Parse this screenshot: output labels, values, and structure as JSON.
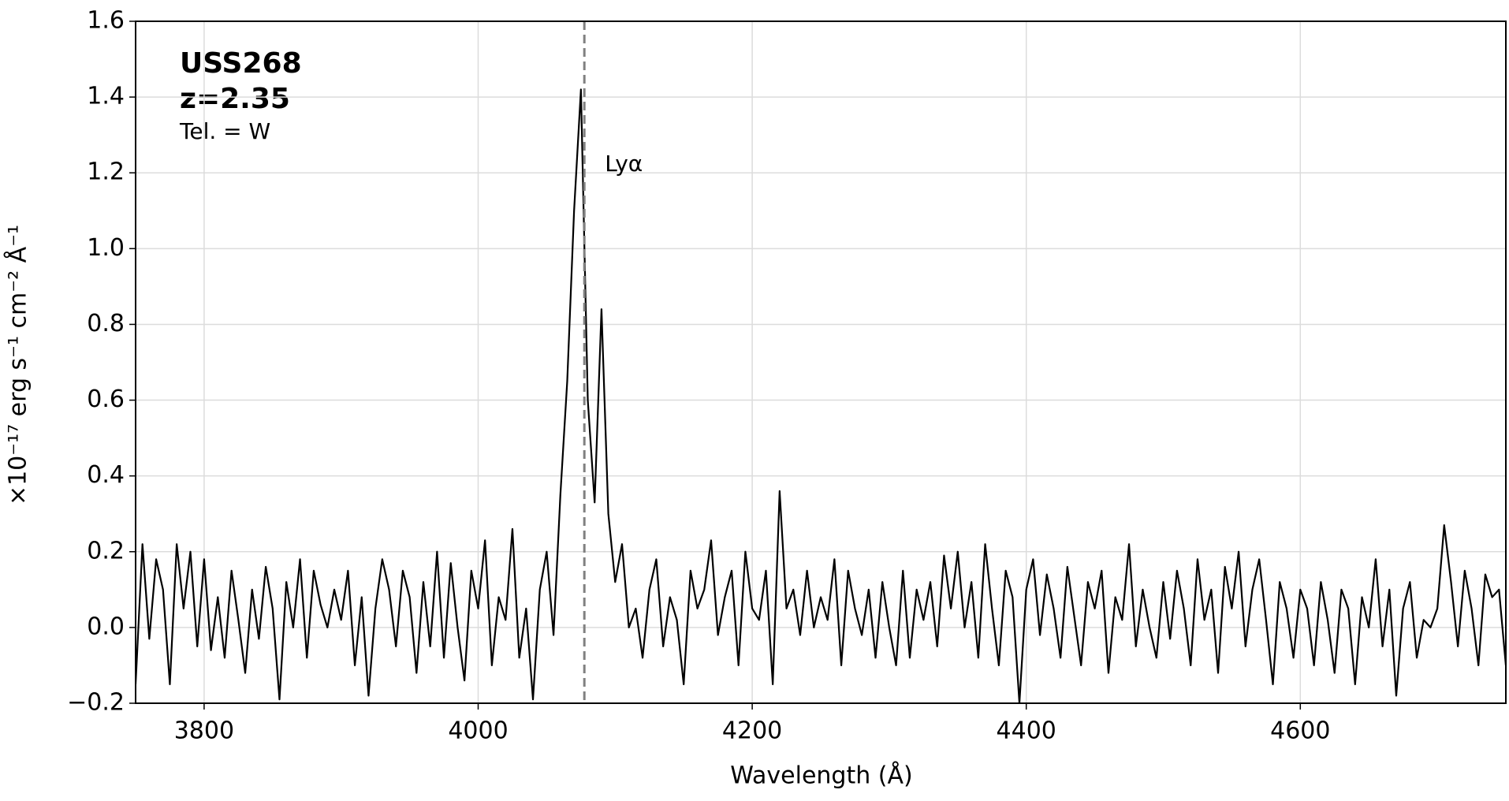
{
  "chart_data": {
    "type": "line",
    "xlabel": "Wavelength (Å)",
    "ylabel": "×10⁻¹⁷ erg s⁻¹ cm⁻² Å⁻¹",
    "annotations": [
      "USS268",
      "z=2.35",
      "Tel. = W"
    ],
    "vlines": [
      {
        "x": 4077.5,
        "label": "Lyα",
        "color": "#808080"
      }
    ],
    "color": "#000000",
    "xlim": [
      3750,
      4750
    ],
    "xticks": [
      3800,
      4000,
      4200,
      4400,
      4600
    ],
    "ylim": [
      -0.2,
      1.6
    ],
    "yticks": [
      {
        "value": -0.2,
        "label": "−0.2"
      },
      {
        "value": 0,
        "label": "0.0"
      },
      0.2,
      0.4,
      0.6,
      0.8,
      {
        "value": 1,
        "label": "1.0"
      },
      1.2,
      1.4,
      1.6
    ],
    "grid": true,
    "x": [
      3750,
      3755,
      3760,
      3765,
      3770,
      3775,
      3780,
      3785,
      3790,
      3795,
      3800,
      3805,
      3810,
      3815,
      3820,
      3825,
      3830,
      3835,
      3840,
      3845,
      3850,
      3855,
      3860,
      3865,
      3870,
      3875,
      3880,
      3885,
      3890,
      3895,
      3900,
      3905,
      3910,
      3915,
      3920,
      3925,
      3930,
      3935,
      3940,
      3945,
      3950,
      3955,
      3960,
      3965,
      3970,
      3975,
      3980,
      3985,
      3990,
      3995,
      4000,
      4005,
      4010,
      4015,
      4020,
      4025,
      4030,
      4035,
      4040,
      4045,
      4050,
      4055,
      4060,
      4065,
      4070,
      4075,
      4080,
      4085,
      4090,
      4095,
      4100,
      4105,
      4110,
      4115,
      4120,
      4125,
      4130,
      4135,
      4140,
      4145,
      4150,
      4155,
      4160,
      4165,
      4170,
      4175,
      4180,
      4185,
      4190,
      4195,
      4200,
      4205,
      4210,
      4215,
      4220,
      4225,
      4230,
      4235,
      4240,
      4245,
      4250,
      4255,
      4260,
      4265,
      4270,
      4275,
      4280,
      4285,
      4290,
      4295,
      4300,
      4305,
      4310,
      4315,
      4320,
      4325,
      4330,
      4335,
      4340,
      4345,
      4350,
      4355,
      4360,
      4365,
      4370,
      4375,
      4380,
      4385,
      4390,
      4395,
      4400,
      4405,
      4410,
      4415,
      4420,
      4425,
      4430,
      4435,
      4440,
      4445,
      4450,
      4455,
      4460,
      4465,
      4470,
      4475,
      4480,
      4485,
      4490,
      4495,
      4500,
      4505,
      4510,
      4515,
      4520,
      4525,
      4530,
      4535,
      4540,
      4545,
      4550,
      4555,
      4560,
      4565,
      4570,
      4575,
      4580,
      4585,
      4590,
      4595,
      4600,
      4605,
      4610,
      4615,
      4620,
      4625,
      4630,
      4635,
      4640,
      4645,
      4650,
      4655,
      4660,
      4665,
      4670,
      4675,
      4680,
      4685,
      4690,
      4695,
      4700,
      4705,
      4710,
      4715,
      4720,
      4725,
      4730,
      4735,
      4740,
      4745,
      4750
    ],
    "values": [
      -0.15,
      0.22,
      -0.03,
      0.18,
      0.1,
      -0.15,
      0.22,
      0.05,
      0.2,
      -0.05,
      0.18,
      -0.06,
      0.08,
      -0.08,
      0.15,
      0.02,
      -0.12,
      0.1,
      -0.03,
      0.16,
      0.05,
      -0.19,
      0.12,
      0.0,
      0.18,
      -0.08,
      0.15,
      0.06,
      0.0,
      0.1,
      0.02,
      0.15,
      -0.1,
      0.08,
      -0.18,
      0.05,
      0.18,
      0.1,
      -0.05,
      0.15,
      0.08,
      -0.12,
      0.12,
      -0.05,
      0.2,
      -0.08,
      0.17,
      0.0,
      -0.14,
      0.15,
      0.05,
      0.23,
      -0.1,
      0.08,
      0.02,
      0.26,
      -0.08,
      0.05,
      -0.19,
      0.1,
      0.2,
      -0.02,
      0.35,
      0.65,
      1.1,
      1.42,
      0.6,
      0.33,
      0.84,
      0.3,
      0.12,
      0.22,
      0.0,
      0.05,
      -0.08,
      0.1,
      0.18,
      -0.05,
      0.08,
      0.02,
      -0.15,
      0.15,
      0.05,
      0.1,
      0.23,
      -0.02,
      0.08,
      0.15,
      -0.1,
      0.2,
      0.05,
      0.02,
      0.15,
      -0.15,
      0.36,
      0.05,
      0.1,
      -0.02,
      0.15,
      0.0,
      0.08,
      0.02,
      0.18,
      -0.1,
      0.15,
      0.05,
      -0.02,
      0.1,
      -0.08,
      0.12,
      0.0,
      -0.1,
      0.15,
      -0.08,
      0.1,
      0.02,
      0.12,
      -0.05,
      0.19,
      0.05,
      0.2,
      0.0,
      0.12,
      -0.08,
      0.22,
      0.05,
      -0.1,
      0.15,
      0.08,
      -0.2,
      0.1,
      0.18,
      -0.02,
      0.14,
      0.05,
      -0.08,
      0.16,
      0.03,
      -0.1,
      0.12,
      0.05,
      0.15,
      -0.12,
      0.08,
      0.02,
      0.22,
      -0.05,
      0.1,
      0.0,
      -0.08,
      0.12,
      -0.03,
      0.15,
      0.05,
      -0.1,
      0.18,
      0.02,
      0.1,
      -0.12,
      0.16,
      0.05,
      0.2,
      -0.05,
      0.1,
      0.18,
      0.02,
      -0.15,
      0.12,
      0.05,
      -0.08,
      0.1,
      0.05,
      -0.1,
      0.12,
      0.02,
      -0.12,
      0.1,
      0.05,
      -0.15,
      0.08,
      0.0,
      0.18,
      -0.05,
      0.1,
      -0.18,
      0.05,
      0.12,
      -0.08,
      0.02,
      0.0,
      0.05,
      0.27,
      0.12,
      -0.05,
      0.15,
      0.05,
      -0.1,
      0.14,
      0.08,
      0.1,
      -0.1
    ]
  }
}
